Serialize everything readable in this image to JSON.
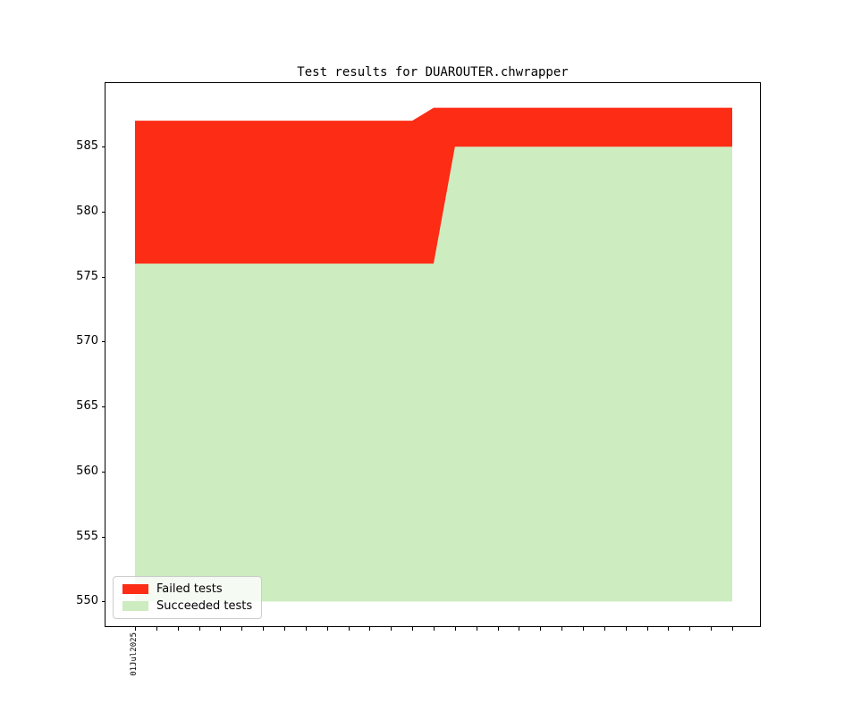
{
  "chart_data": {
    "type": "area",
    "stacked": true,
    "title": "Test results for DUAROUTER.chwrapper",
    "xlabel": "",
    "ylabel": "",
    "baseline": 550,
    "ylim": [
      548.1,
      589.9
    ],
    "yticks": [
      550,
      555,
      560,
      565,
      570,
      575,
      580,
      585
    ],
    "n_points": 29,
    "xtick_labels": [
      "01Jul2025"
    ],
    "grid": false,
    "legend_position": "lower left",
    "series": [
      {
        "name": "Failed tests",
        "color": "#fd2c15",
        "values": [
          11,
          11,
          11,
          11,
          11,
          11,
          11,
          11,
          11,
          11,
          11,
          11,
          11,
          11,
          12,
          3,
          3,
          3,
          3,
          3,
          3,
          3,
          3,
          3,
          3,
          3,
          3,
          3,
          3
        ]
      },
      {
        "name": "Succeeded tests",
        "color": "#cdecc0",
        "values": [
          576,
          576,
          576,
          576,
          576,
          576,
          576,
          576,
          576,
          576,
          576,
          576,
          576,
          576,
          576,
          585,
          585,
          585,
          585,
          585,
          585,
          585,
          585,
          585,
          585,
          585,
          585,
          585,
          585
        ]
      }
    ]
  }
}
